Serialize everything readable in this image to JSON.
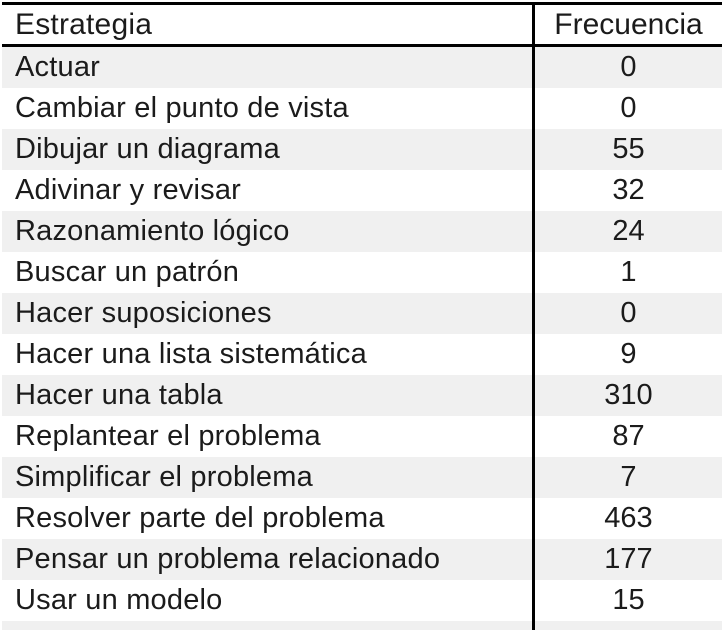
{
  "chart_data": {
    "type": "table",
    "title": "",
    "columns": [
      "Estrategia",
      "Frecuencia"
    ],
    "categories": [
      "Actuar",
      "Cambiar el punto de vista",
      "Dibujar un diagrama",
      "Adivinar y revisar",
      "Razonamiento lógico",
      "Buscar un patrón",
      "Hacer suposiciones",
      "Hacer una lista sistemática",
      "Hacer una tabla",
      "Replantear el problema",
      "Simplificar el problema",
      "Resolver parte del problema",
      "Pensar un problema relacionado",
      "Usar un modelo"
    ],
    "values": [
      0,
      0,
      55,
      32,
      24,
      1,
      0,
      9,
      310,
      87,
      7,
      463,
      177,
      15
    ]
  },
  "table": {
    "headers": [
      "Estrategia",
      "Frecuencia"
    ],
    "rows": [
      {
        "label": "Actuar",
        "value": "0"
      },
      {
        "label": "Cambiar el punto de vista",
        "value": "0"
      },
      {
        "label": "Dibujar un diagrama",
        "value": "55"
      },
      {
        "label": "Adivinar y revisar",
        "value": "32"
      },
      {
        "label": "Razonamiento lógico",
        "value": "24"
      },
      {
        "label": "Buscar un patrón",
        "value": "1"
      },
      {
        "label": "Hacer suposiciones",
        "value": "0"
      },
      {
        "label": "Hacer una lista sistemática",
        "value": "9"
      },
      {
        "label": "Hacer una tabla",
        "value": "310"
      },
      {
        "label": "Replantear el problema",
        "value": "87"
      },
      {
        "label": "Simplificar el problema",
        "value": "7"
      },
      {
        "label": "Resolver parte del problema",
        "value": "463"
      },
      {
        "label": "Pensar un problema relacionado",
        "value": "177"
      },
      {
        "label": "Usar un modelo",
        "value": "15"
      }
    ]
  },
  "colors": {
    "row_alt": "#f0f0f0",
    "border": "#000000",
    "text": "#1b1b1b"
  }
}
